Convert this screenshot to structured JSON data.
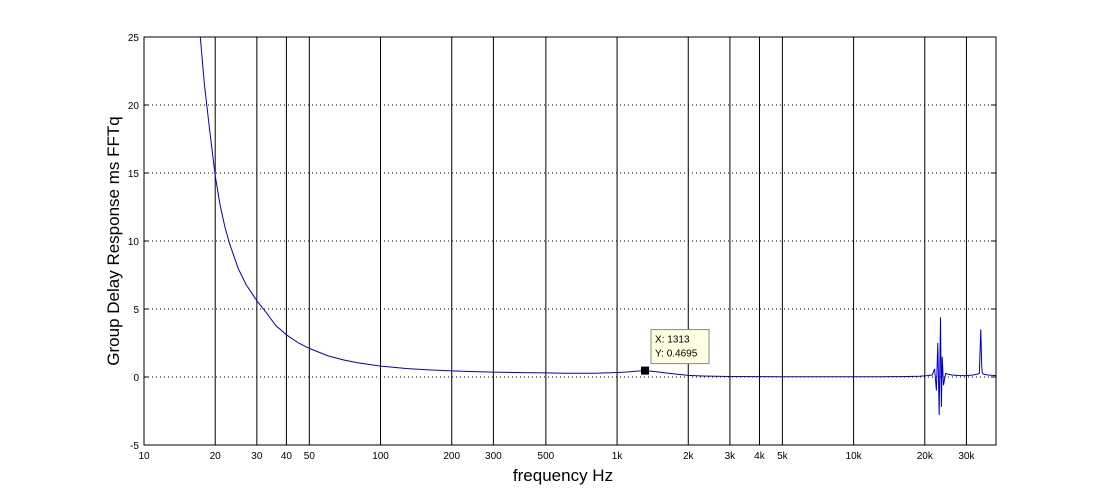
{
  "chart_data": {
    "type": "line",
    "title": "",
    "xlabel": "frequency   Hz",
    "ylabel": "Group Delay Response ms    FFTq",
    "x_scale": "log",
    "xlim": [
      10,
      40000
    ],
    "ylim": [
      -5,
      25
    ],
    "x_ticks": [
      10,
      20,
      30,
      40,
      50,
      100,
      200,
      300,
      500,
      1000,
      2000,
      3000,
      4000,
      5000,
      10000,
      20000,
      30000
    ],
    "x_tick_labels": [
      "10",
      "20",
      "30",
      "40",
      "50",
      "100",
      "200",
      "300",
      "500",
      "1k",
      "2k",
      "3k",
      "4k",
      "5k",
      "10k",
      "20k",
      "30k"
    ],
    "y_ticks": [
      -5,
      0,
      5,
      10,
      15,
      20,
      25
    ],
    "y_tick_labels": [
      "-5",
      "0",
      "5",
      "10",
      "15",
      "20",
      "25"
    ],
    "grid": "x solid, y dotted",
    "series": [
      {
        "color": "#0000cc",
        "x": [
          17.3,
          18,
          19,
          20,
          21,
          22,
          23,
          25,
          27,
          30,
          33,
          36,
          40,
          45,
          50,
          60,
          70,
          80,
          100,
          130,
          160,
          200,
          250,
          300,
          400,
          500,
          600,
          700,
          800,
          900,
          1000,
          1100,
          1200,
          1313,
          1450,
          1600,
          1800,
          2000,
          2300,
          2600,
          3000,
          4000,
          5000,
          7000,
          10000,
          13000,
          16000,
          19000,
          20500,
          21500,
          22000,
          22400,
          22700,
          23000,
          23300,
          23500,
          23700,
          24000,
          24500,
          26000,
          28000,
          30000,
          32000,
          34000,
          34500,
          34800,
          35000,
          35500,
          37000,
          40000
        ],
        "y": [
          25,
          21.5,
          18,
          14.8,
          12.6,
          11.0,
          9.8,
          8.0,
          6.8,
          5.6,
          4.7,
          3.8,
          3.1,
          2.5,
          2.1,
          1.55,
          1.25,
          1.05,
          0.8,
          0.62,
          0.52,
          0.45,
          0.4,
          0.36,
          0.32,
          0.3,
          0.28,
          0.27,
          0.28,
          0.3,
          0.33,
          0.37,
          0.42,
          0.4695,
          0.4,
          0.3,
          0.2,
          0.12,
          0.07,
          0.05,
          0.04,
          0.03,
          0.02,
          0.02,
          0.02,
          0.02,
          0.03,
          0.05,
          0.1,
          0.15,
          0.6,
          -1.0,
          2.5,
          -2.8,
          4.4,
          -2.2,
          1.5,
          -0.6,
          0.25,
          0.15,
          0.1,
          0.1,
          0.15,
          0.25,
          3.5,
          0.8,
          0.3,
          0.2,
          0.15,
          0.1
        ]
      }
    ],
    "datatip": {
      "x_label": "X: 1313",
      "y_label": "Y: 0.4695",
      "x": 1313,
      "y": 0.4695
    }
  }
}
